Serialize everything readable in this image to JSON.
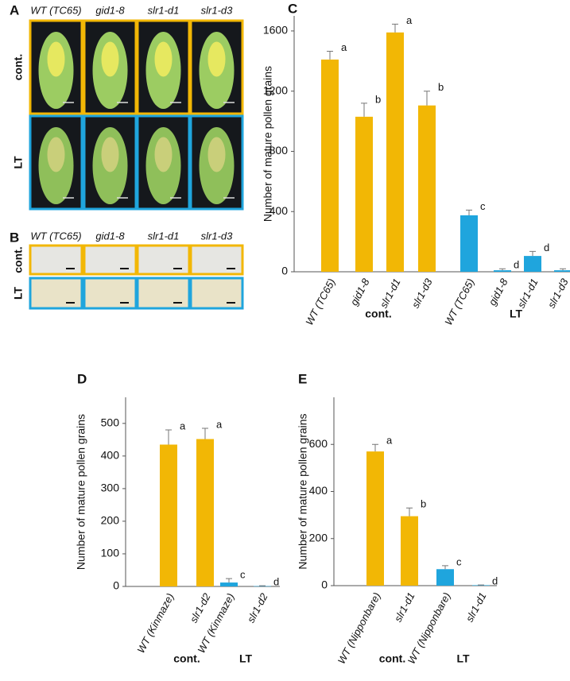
{
  "figure": {
    "panel_a": {
      "letter": "A",
      "genotypes": [
        "WT (TC65)",
        "gid1-8",
        "slr1-d1",
        "slr1-d3"
      ],
      "rows": [
        "cont.",
        "LT"
      ]
    },
    "panel_b": {
      "letter": "B",
      "genotypes": [
        "WT (TC65)",
        "gid1-8",
        "slr1-d1",
        "slr1-d3"
      ],
      "rows": [
        "cont.",
        "LT"
      ]
    }
  },
  "chart_data": [
    {
      "type": "bar",
      "panel": "C",
      "y_label": "Number of mature pollen grains",
      "categories": [
        "WT (TC65)",
        "gid1-8",
        "slr1-d1",
        "slr1-d3"
      ],
      "series": [
        {
          "name": "cont.",
          "color": "#f2b705",
          "values": [
            1410,
            1030,
            1590,
            1105
          ],
          "errors": [
            55,
            90,
            55,
            95
          ],
          "letters": [
            "a",
            "b",
            "a",
            "b"
          ]
        },
        {
          "name": "LT",
          "color": "#1fa5dd",
          "values": [
            375,
            10,
            105,
            10
          ],
          "errors": [
            35,
            10,
            30,
            10
          ],
          "letters": [
            "c",
            "d",
            "d",
            "d"
          ]
        }
      ],
      "ylim": [
        0,
        1700
      ],
      "yticks": [
        0,
        400,
        800,
        1200,
        1600
      ]
    },
    {
      "type": "bar",
      "panel": "D",
      "y_label": "Number of mature pollen grains",
      "categories": [
        "WT (Kinmaze)",
        "slr1-d2"
      ],
      "series": [
        {
          "name": "cont.",
          "color": "#f2b705",
          "values": [
            435,
            452
          ],
          "errors": [
            45,
            33
          ],
          "letters": [
            "a",
            "a"
          ]
        },
        {
          "name": "LT",
          "color": "#1fa5dd",
          "values": [
            12,
            1
          ],
          "errors": [
            12,
            1
          ],
          "letters": [
            "c",
            "d"
          ]
        }
      ],
      "ylim": [
        0,
        580
      ],
      "yticks": [
        0,
        100,
        200,
        300,
        400,
        500
      ]
    },
    {
      "type": "bar",
      "panel": "E",
      "y_label": "Number of mature pollen grains",
      "categories": [
        "WT (Nipponbare)",
        "slr1-d1"
      ],
      "series": [
        {
          "name": "cont.",
          "color": "#f2b705",
          "values": [
            570,
            295
          ],
          "errors": [
            30,
            35
          ],
          "letters": [
            "a",
            "b"
          ]
        },
        {
          "name": "LT",
          "color": "#1fa5dd",
          "values": [
            70,
            2
          ],
          "errors": [
            15,
            1
          ],
          "letters": [
            "c",
            "d"
          ]
        }
      ],
      "ylim": [
        0,
        800
      ],
      "yticks": [
        0,
        200,
        400,
        600
      ]
    }
  ]
}
